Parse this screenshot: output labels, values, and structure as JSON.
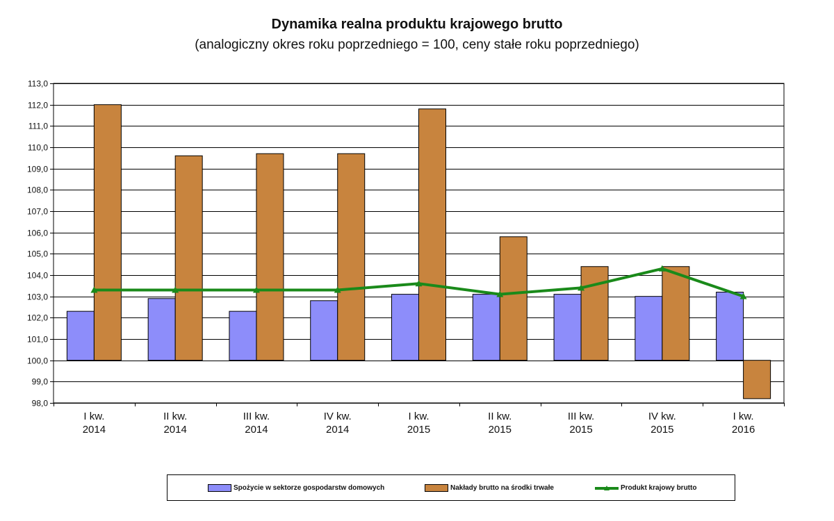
{
  "chart_data": {
    "type": "bar",
    "title": "Dynamika realna produktu krajowego brutto",
    "subtitle": "(analogiczny okres roku poprzedniego = 100, ceny stałe roku poprzedniego)",
    "categories": [
      [
        "I kw.",
        "2014"
      ],
      [
        "II kw.",
        "2014"
      ],
      [
        "III kw.",
        "2014"
      ],
      [
        "IV kw.",
        "2014"
      ],
      [
        "I kw.",
        "2015"
      ],
      [
        "II kw.",
        "2015"
      ],
      [
        "III kw.",
        "2015"
      ],
      [
        "IV kw.",
        "2015"
      ],
      [
        "I kw.",
        "2016"
      ]
    ],
    "ylim": [
      98.0,
      113.0
    ],
    "ytick_step": 1.0,
    "baseline": 100.0,
    "grid": true,
    "legend_position": "bottom",
    "series": [
      {
        "name": "Spożycie w sektorze gospodarstw domowych",
        "type": "bar",
        "color": "#8d8dfa",
        "values": [
          102.3,
          102.9,
          102.3,
          102.8,
          103.1,
          103.1,
          103.1,
          103.0,
          103.2
        ]
      },
      {
        "name": "Nakłady brutto na środki trwałe",
        "type": "bar",
        "color": "#c8843e",
        "values": [
          112.0,
          109.6,
          109.7,
          109.7,
          111.8,
          105.8,
          104.4,
          104.4,
          98.2
        ]
      },
      {
        "name": "Produkt krajowy brutto",
        "type": "line",
        "color": "#1a8a1a",
        "values": [
          103.3,
          103.3,
          103.3,
          103.3,
          103.6,
          103.1,
          103.4,
          104.3,
          103.0
        ]
      }
    ]
  }
}
